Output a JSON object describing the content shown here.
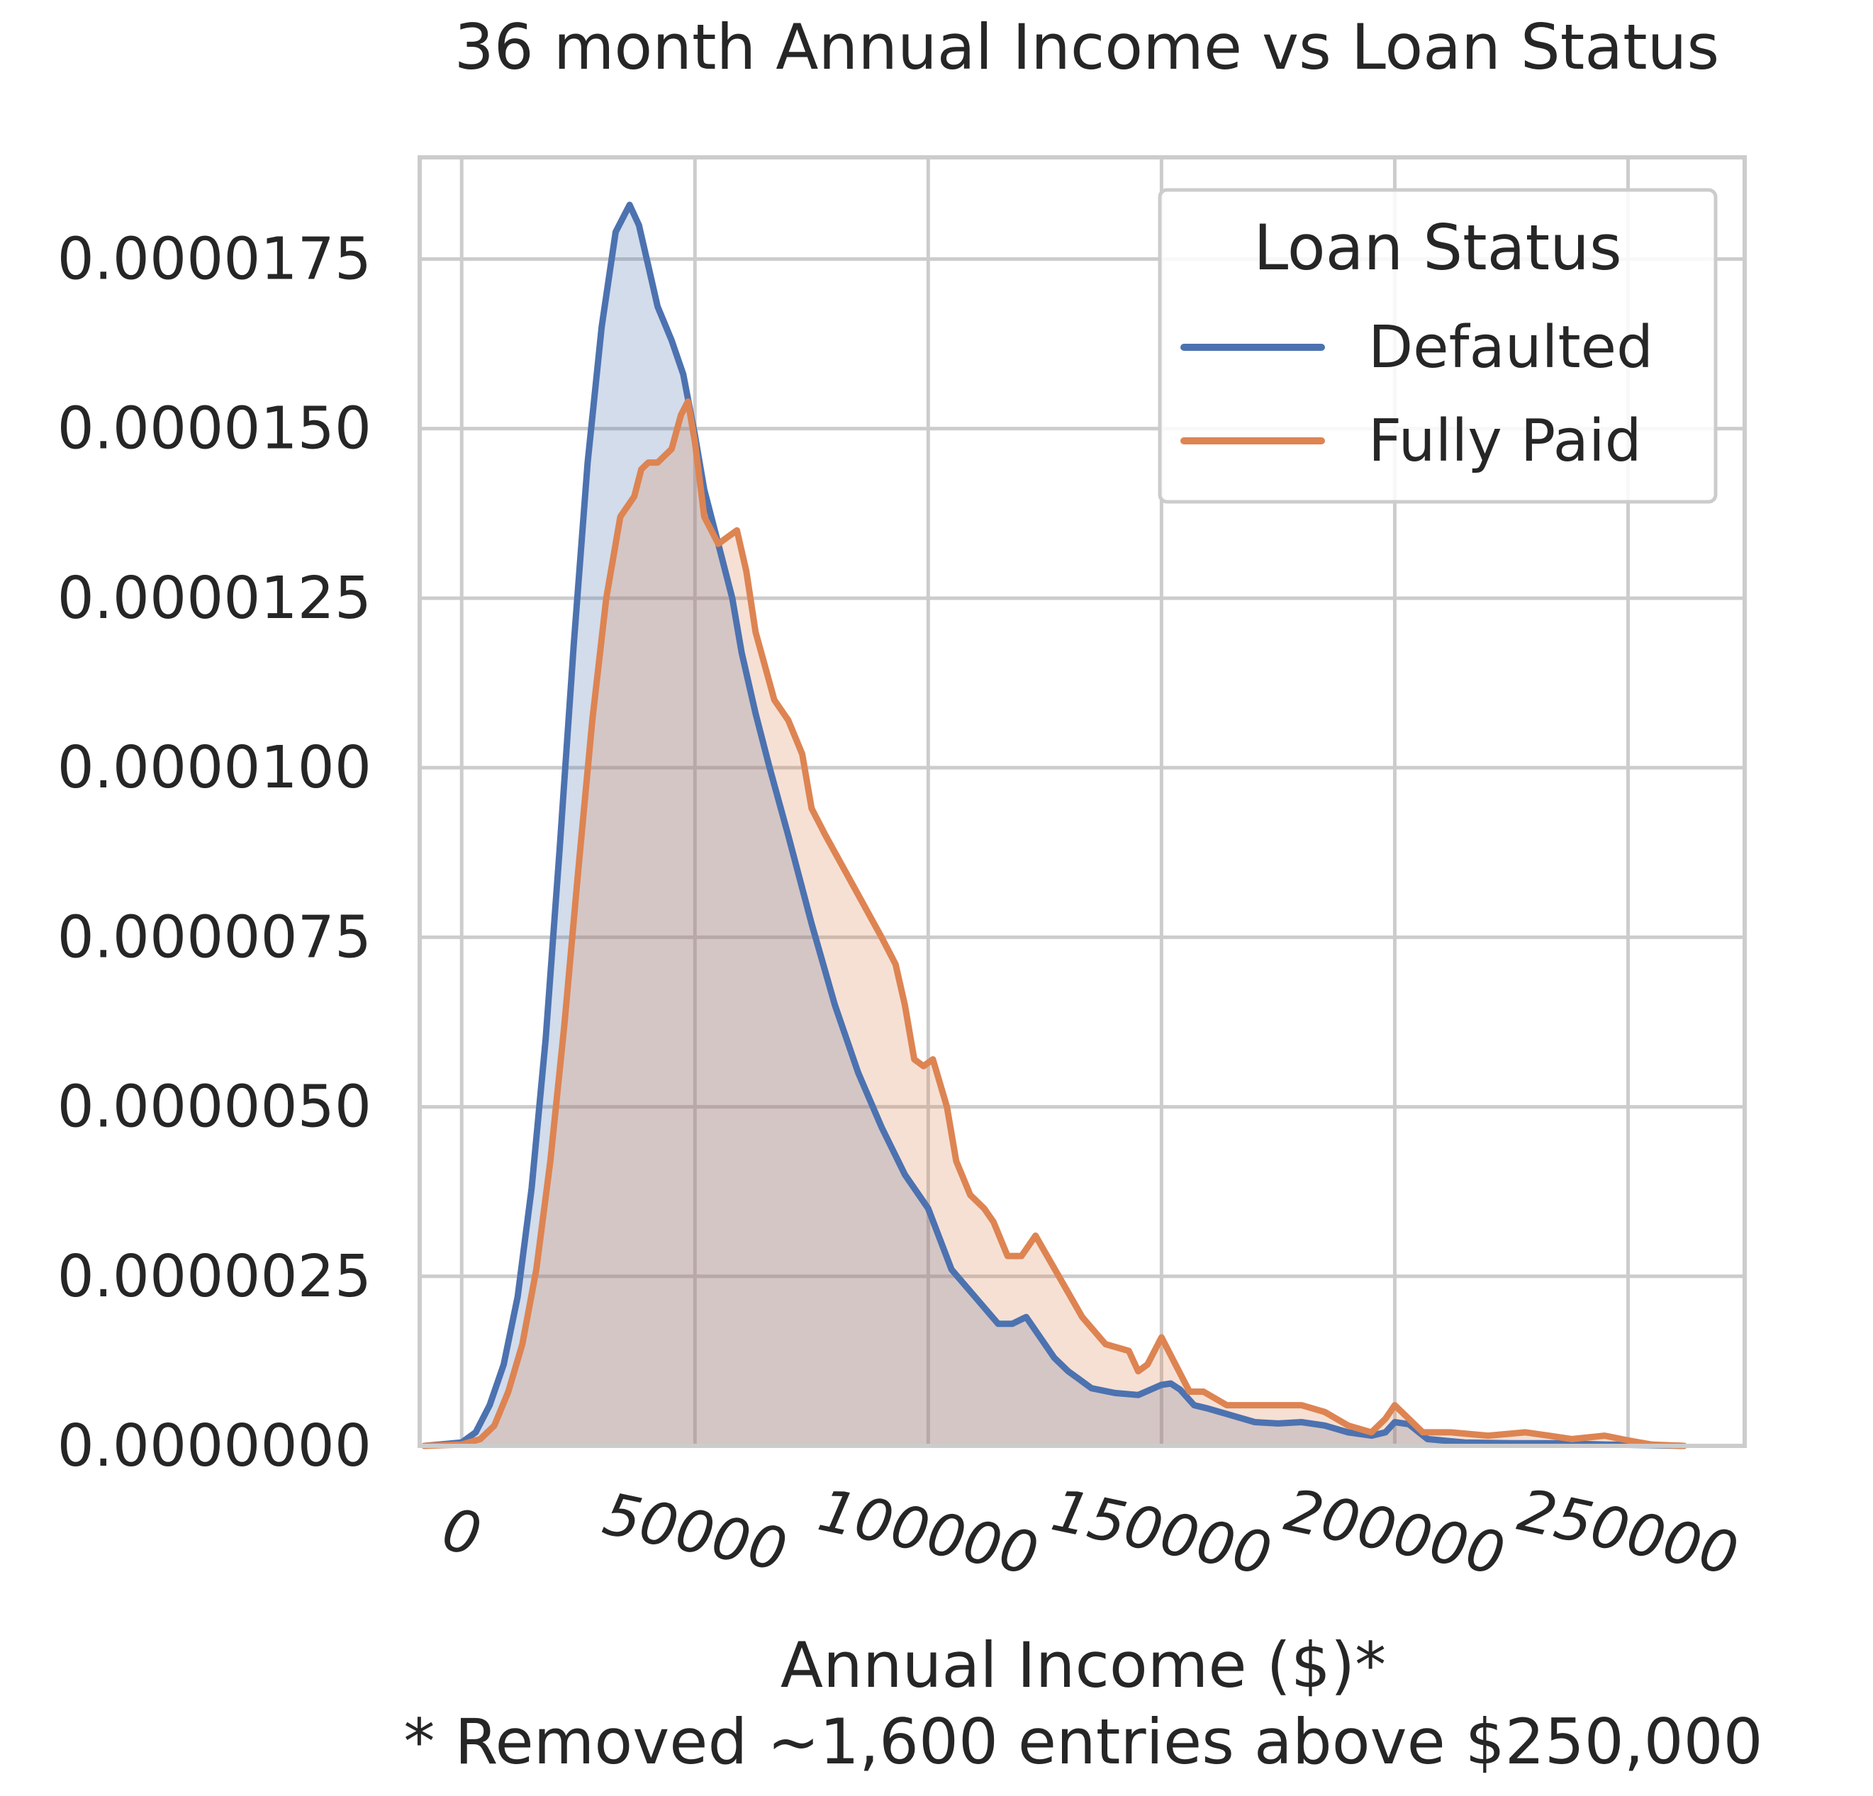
{
  "chart_data": {
    "type": "area",
    "title": "36 month Annual Income vs Loan Status",
    "xlabel": "Annual Income ($)*",
    "footnote": "* Removed ~1,600 entries above $250,000",
    "ylabel": "",
    "xlim": [
      -9000,
      275000
    ],
    "ylim": [
      0,
      1.9e-05
    ],
    "x_ticks": [
      0,
      50000,
      100000,
      150000,
      200000,
      250000
    ],
    "x_tick_labels": [
      "0",
      "50000",
      "100000",
      "150000",
      "200000",
      "250000"
    ],
    "y_ticks": [
      0,
      2.5e-06,
      5e-06,
      7.5e-06,
      1e-05,
      1.25e-05,
      1.5e-05,
      1.75e-05
    ],
    "y_tick_labels": [
      "0.0000000",
      "0.0000025",
      "0.0000050",
      "0.0000075",
      "0.0000100",
      "0.0000125",
      "0.0000150",
      "0.0000175"
    ],
    "grid": true,
    "legend": {
      "title": "Loan Status",
      "placement": "top-right"
    },
    "series": [
      {
        "name": "Defaulted",
        "color": "#4c72b0",
        "x": [
          -8000,
          0,
          3000,
          6000,
          9000,
          12000,
          15000,
          18000,
          21000,
          24000,
          27000,
          30000,
          33000,
          36000,
          38000,
          40000,
          42000,
          45000,
          47500,
          50000,
          52000,
          55000,
          58000,
          60000,
          63000,
          66000,
          70000,
          75000,
          80000,
          85000,
          90000,
          95000,
          100000,
          105000,
          110000,
          115000,
          118000,
          121000,
          124000,
          127000,
          130000,
          135000,
          140000,
          145000,
          150000,
          152000,
          154000,
          157000,
          160000,
          165000,
          170000,
          175000,
          180000,
          185000,
          190000,
          195000,
          198000,
          200000,
          203000,
          207000,
          215000,
          225000,
          235000,
          245000,
          255000,
          262000
        ],
        "y": [
          0.0,
          5e-08,
          2e-07,
          6e-07,
          1.2e-06,
          2.2e-06,
          3.8e-06,
          6e-06,
          8.8e-06,
          1.18e-05,
          1.45e-05,
          1.65e-05,
          1.79e-05,
          1.83e-05,
          1.8e-05,
          1.74e-05,
          1.68e-05,
          1.63e-05,
          1.58e-05,
          1.49e-05,
          1.41e-05,
          1.33e-05,
          1.25e-05,
          1.17e-05,
          1.08e-05,
          1e-05,
          9e-06,
          7.7e-06,
          6.5e-06,
          5.5e-06,
          4.7e-06,
          4e-06,
          3.5e-06,
          2.6e-06,
          2.2e-06,
          1.8e-06,
          1.8e-06,
          1.9e-06,
          1.6e-06,
          1.3e-06,
          1.1e-06,
          8.5e-07,
          7.8e-07,
          7.5e-07,
          9e-07,
          9.2e-07,
          8.3e-07,
          6e-07,
          5.5e-07,
          4.5e-07,
          3.5e-07,
          3.3e-07,
          3.5e-07,
          3e-07,
          2e-07,
          1.5e-07,
          2e-07,
          3.5e-07,
          3.2e-07,
          1e-07,
          5e-08,
          4e-08,
          4e-08,
          2e-08,
          1e-08,
          0.0
        ]
      },
      {
        "name": "Fully Paid",
        "color": "#dd8452",
        "x": [
          -8000,
          0,
          4000,
          7000,
          10000,
          13000,
          16000,
          19000,
          22000,
          25000,
          28000,
          31000,
          34000,
          37000,
          38500,
          40000,
          42000,
          45000,
          47000,
          48500,
          50000,
          52000,
          55000,
          57000,
          59000,
          61000,
          63000,
          65000,
          67000,
          70000,
          73000,
          75000,
          78000,
          82000,
          86000,
          90000,
          93000,
          95000,
          97000,
          99000,
          101000,
          104000,
          106000,
          109000,
          112000,
          114000,
          117000,
          120000,
          123000,
          128000,
          133000,
          138000,
          143000,
          145000,
          147000,
          150000,
          153000,
          156000,
          159000,
          164000,
          170000,
          176000,
          180000,
          185000,
          190000,
          195000,
          198000,
          200000,
          203000,
          206000,
          212000,
          220000,
          228000,
          233000,
          238000,
          245000,
          250000,
          255000,
          262000
        ],
        "y": [
          0.0,
          2e-08,
          1e-07,
          3e-07,
          8e-07,
          1.5e-06,
          2.6e-06,
          4.2e-06,
          6.2e-06,
          8.5e-06,
          1.07e-05,
          1.25e-05,
          1.37e-05,
          1.4e-05,
          1.44e-05,
          1.45e-05,
          1.45e-05,
          1.47e-05,
          1.52e-05,
          1.54e-05,
          1.48e-05,
          1.37e-05,
          1.33e-05,
          1.34e-05,
          1.35e-05,
          1.29e-05,
          1.2e-05,
          1.15e-05,
          1.1e-05,
          1.07e-05,
          1.02e-05,
          9.4e-06,
          9e-06,
          8.5e-06,
          8e-06,
          7.5e-06,
          7.1e-06,
          6.5e-06,
          5.7e-06,
          5.6e-06,
          5.7e-06,
          5e-06,
          4.2e-06,
          3.7e-06,
          3.5e-06,
          3.3e-06,
          2.8e-06,
          2.8e-06,
          3.1e-06,
          2.5e-06,
          1.9e-06,
          1.5e-06,
          1.4e-06,
          1.1e-06,
          1.2e-06,
          1.6e-06,
          1.2e-06,
          8e-07,
          8e-07,
          6e-07,
          6e-07,
          6e-07,
          6e-07,
          5e-07,
          3e-07,
          2e-07,
          4e-07,
          6e-07,
          4e-07,
          2e-07,
          2e-07,
          1.5e-07,
          2e-07,
          1.5e-07,
          1e-07,
          1.5e-07,
          8e-08,
          2e-08,
          0.0
        ]
      }
    ]
  }
}
